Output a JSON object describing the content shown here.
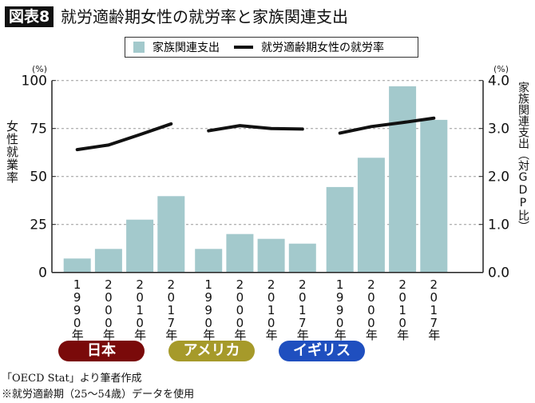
{
  "header": {
    "badge": "図表8",
    "title": "就労適齢期女性の就労率と家族関連支出"
  },
  "legend": {
    "bars": "家族関連支出",
    "line": "就労適齢期女性の就労率"
  },
  "colors": {
    "bar": "#a3c9cc",
    "line": "#111111",
    "japan": "#7a0a0a",
    "usa": "#a69a2a",
    "uk": "#1f4fbf"
  },
  "chart_data": {
    "type": "bar+line",
    "groups": [
      "日本",
      "アメリカ",
      "イギリス"
    ],
    "categories": [
      "1990年",
      "2000年",
      "2010年",
      "2017年"
    ],
    "left_axis": {
      "label": "女性就業率",
      "unit": "(%)",
      "range": [
        0,
        100
      ],
      "ticks": [
        "0",
        "25",
        "50",
        "75",
        "100"
      ]
    },
    "right_axis": {
      "label": "家族関連支出（対GDP比）",
      "unit": "(%)",
      "range": [
        0,
        4
      ],
      "ticks": [
        "0.0",
        "1.0",
        "2.0",
        "3.0",
        "4.0"
      ]
    },
    "grid": true,
    "series": [
      {
        "name": "家族関連支出",
        "type": "bar",
        "axis": "right",
        "values": [
          [
            0.29,
            0.49,
            1.1,
            1.59
          ],
          [
            0.49,
            0.8,
            0.7,
            0.6
          ],
          [
            1.78,
            2.39,
            3.88,
            3.18
          ]
        ]
      },
      {
        "name": "就労適齢期女性の就労率",
        "type": "line",
        "axis": "left",
        "values": [
          [
            64.0,
            66.4,
            71.8,
            77.4
          ],
          [
            73.8,
            76.5,
            75.0,
            74.7
          ],
          [
            72.6,
            76.0,
            78.1,
            80.4
          ]
        ]
      }
    ]
  },
  "footer": {
    "source": "「OECD Stat」より筆者作成",
    "note": "※就労適齢期（25〜54歳）データを使用"
  }
}
